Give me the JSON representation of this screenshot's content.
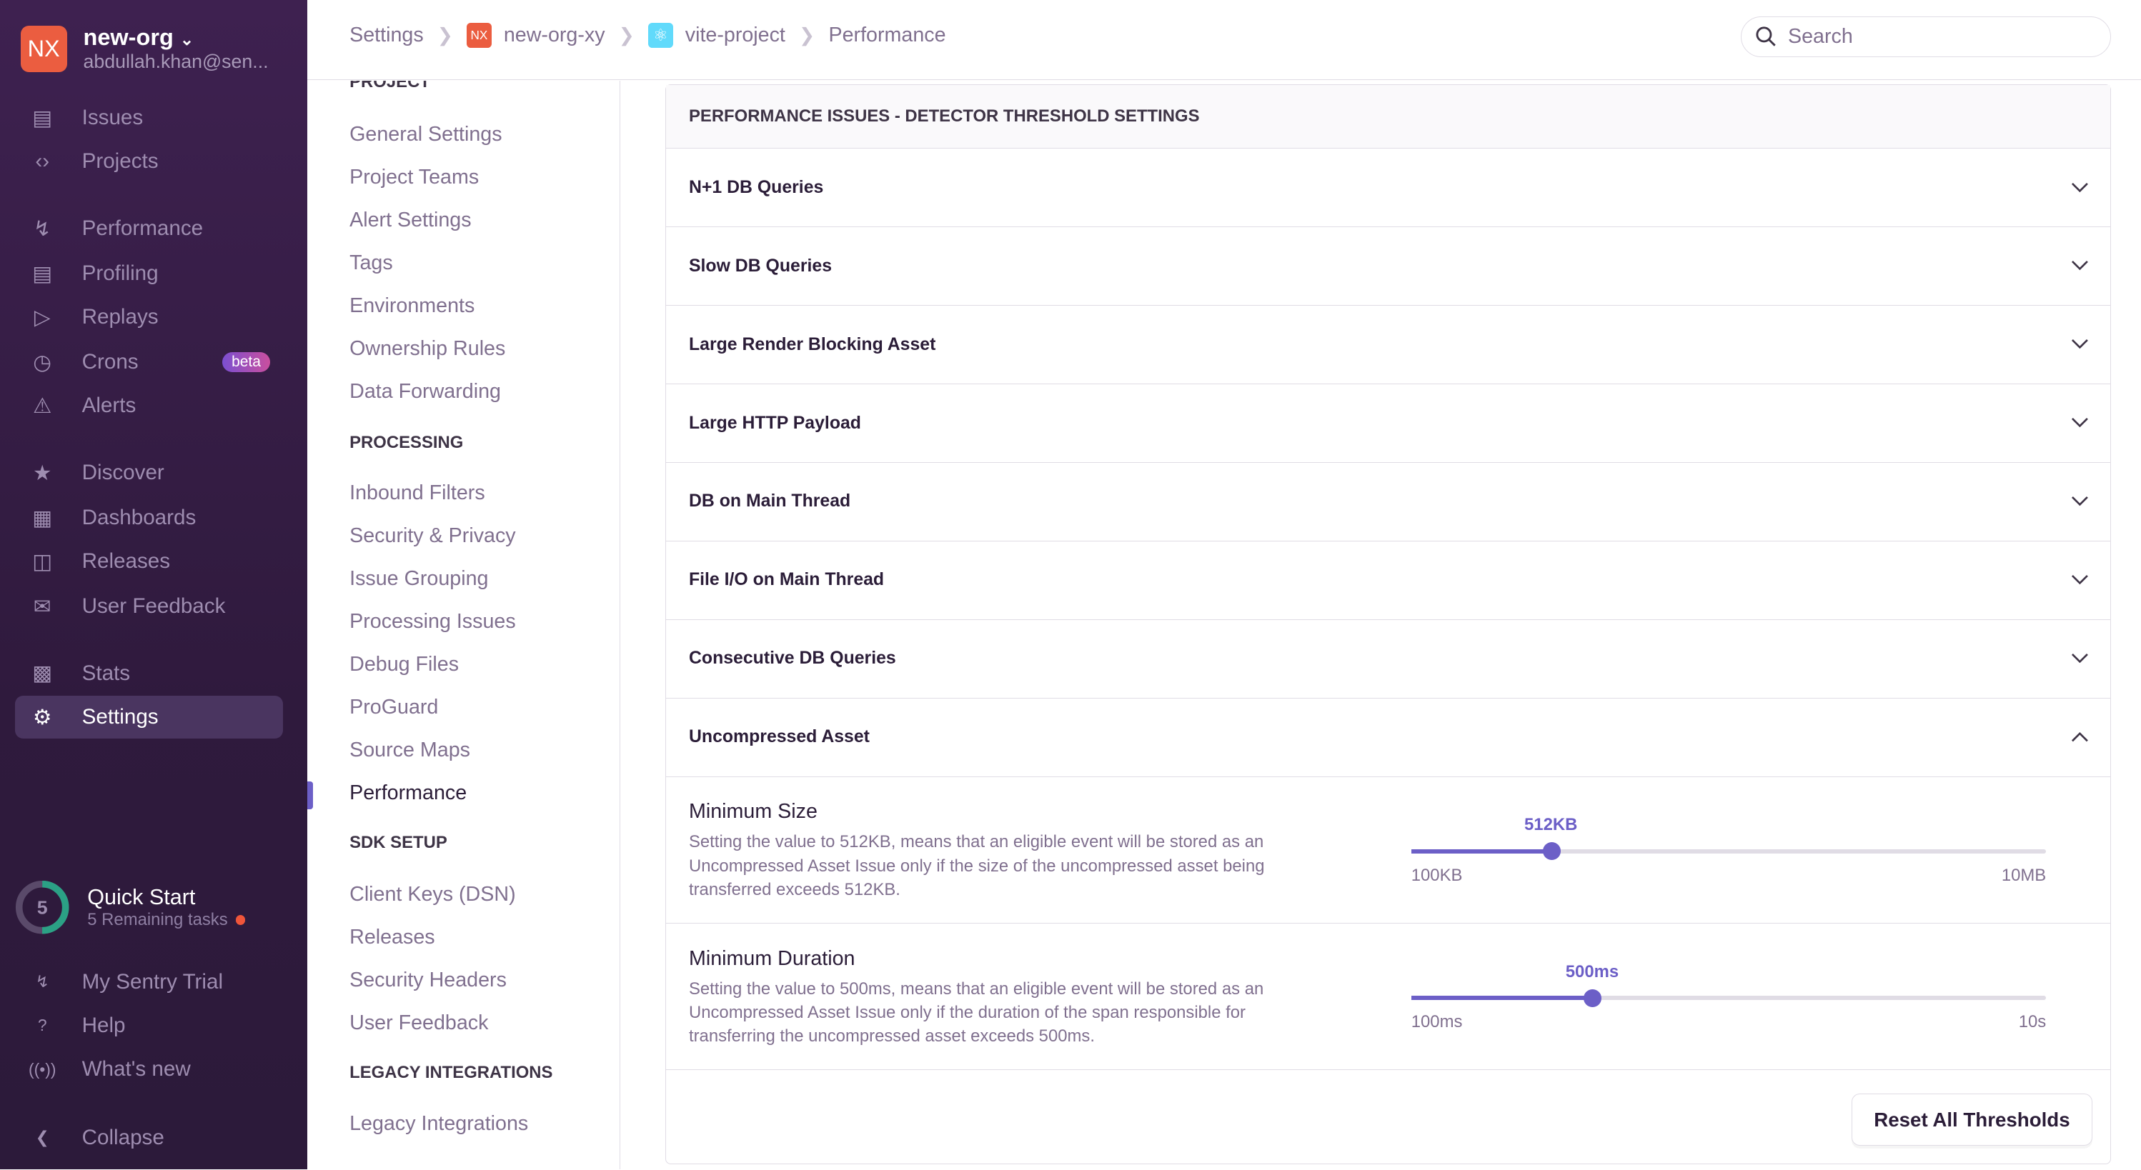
{
  "org": {
    "avatar": "NX",
    "name": "new-org",
    "email": "abdullah.khan@sen..."
  },
  "sidebar": {
    "items": [
      {
        "label": "Issues",
        "icon": "issues-icon"
      },
      {
        "label": "Projects",
        "icon": "projects-icon"
      },
      {
        "label": "Performance",
        "icon": "performance-icon"
      },
      {
        "label": "Profiling",
        "icon": "profiling-icon"
      },
      {
        "label": "Replays",
        "icon": "replays-icon"
      },
      {
        "label": "Crons",
        "icon": "crons-icon",
        "badge": "beta"
      },
      {
        "label": "Alerts",
        "icon": "alerts-icon"
      },
      {
        "label": "Discover",
        "icon": "discover-icon"
      },
      {
        "label": "Dashboards",
        "icon": "dashboards-icon"
      },
      {
        "label": "Releases",
        "icon": "releases-icon"
      },
      {
        "label": "User Feedback",
        "icon": "user-feedback-icon"
      },
      {
        "label": "Stats",
        "icon": "stats-icon"
      },
      {
        "label": "Settings",
        "icon": "settings-icon",
        "active": true
      }
    ],
    "quickstart": {
      "count": "5",
      "title": "Quick Start",
      "subtitle": "5 Remaining tasks",
      "progress": 0.5
    },
    "footer": [
      {
        "label": "My Sentry Trial"
      },
      {
        "label": "Help"
      },
      {
        "label": "What's new"
      },
      {
        "label": "Collapse"
      }
    ]
  },
  "breadcrumb": {
    "items": [
      "Settings",
      "new-org-xy",
      "vite-project",
      "Performance"
    ],
    "org_avatar": "NX"
  },
  "search": {
    "placeholder": "Search"
  },
  "subnav": {
    "project": {
      "heading": "PROJECT",
      "items": [
        "General Settings",
        "Project Teams",
        "Alert Settings",
        "Tags",
        "Environments",
        "Ownership Rules",
        "Data Forwarding"
      ]
    },
    "processing": {
      "heading": "PROCESSING",
      "items": [
        "Inbound Filters",
        "Security & Privacy",
        "Issue Grouping",
        "Processing Issues",
        "Debug Files",
        "ProGuard",
        "Source Maps",
        "Performance"
      ]
    },
    "sdk": {
      "heading": "SDK SETUP",
      "items": [
        "Client Keys (DSN)",
        "Releases",
        "Security Headers",
        "User Feedback"
      ]
    },
    "legacy": {
      "heading": "LEGACY INTEGRATIONS",
      "items": [
        "Legacy Integrations"
      ]
    }
  },
  "panel": {
    "title": "PERFORMANCE ISSUES - DETECTOR THRESHOLD SETTINGS",
    "detectors": [
      "N+1 DB Queries",
      "Slow DB Queries",
      "Large Render Blocking Asset",
      "Large HTTP Payload",
      "DB on Main Thread",
      "File I/O on Main Thread",
      "Consecutive DB Queries",
      "Uncompressed Asset"
    ],
    "expanded": "Uncompressed Asset",
    "fields": [
      {
        "label": "Minimum Size",
        "help": "Setting the value to 512KB, means that an eligible event will be stored as an Uncompressed Asset Issue only if the size of the uncompressed asset being transferred exceeds 512KB.",
        "value": "512KB",
        "min": "100KB",
        "max": "10MB",
        "fraction": 0.22
      },
      {
        "label": "Minimum Duration",
        "help": "Setting the value to 500ms, means that an eligible event will be stored as an Uncompressed Asset Issue only if the duration of the span responsible for transferring the uncompressed asset exceeds 500ms.",
        "value": "500ms",
        "min": "100ms",
        "max": "10s",
        "fraction": 0.285
      }
    ],
    "reset_label": "Reset All Thresholds"
  },
  "colors": {
    "accent": "#6c5fc7",
    "sidebar": "#2f1a3d",
    "org": "#eb5d40",
    "progress": "#2ba185"
  }
}
